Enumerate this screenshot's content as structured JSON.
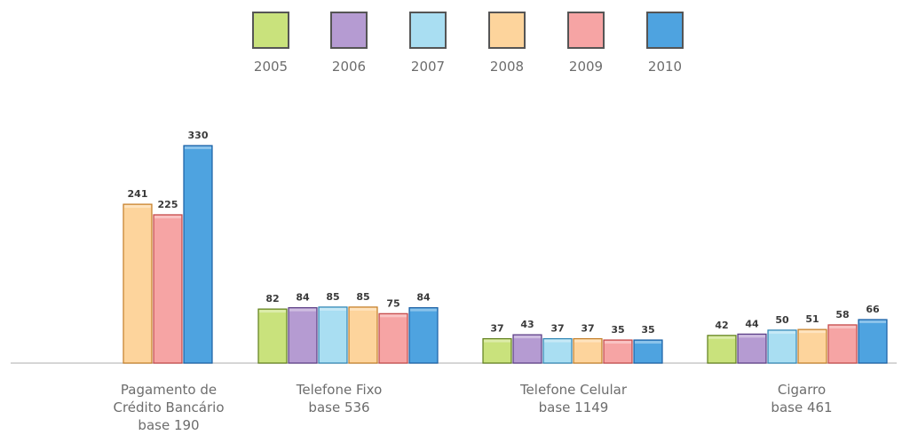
{
  "chart_data": {
    "type": "bar",
    "series": [
      {
        "name": "2005",
        "color": "#c9e27c",
        "edge": "#5f7e1c",
        "values": [
          null,
          82,
          37,
          42
        ]
      },
      {
        "name": "2006",
        "color": "#b59bd2",
        "edge": "#5b3d84",
        "values": [
          null,
          84,
          43,
          44
        ]
      },
      {
        "name": "2007",
        "color": "#a9def2",
        "edge": "#2e84b3",
        "values": [
          null,
          85,
          37,
          50
        ]
      },
      {
        "name": "2008",
        "color": "#fdd49c",
        "edge": "#c37d27",
        "values": [
          241,
          85,
          37,
          51
        ]
      },
      {
        "name": "2009",
        "color": "#f6a4a4",
        "edge": "#c34646",
        "values": [
          225,
          75,
          35,
          58
        ]
      },
      {
        "name": "2010",
        "color": "#4ea3e0",
        "edge": "#1a5fa3",
        "values": [
          330,
          84,
          35,
          66
        ]
      }
    ],
    "categories": [
      {
        "lines": [
          "Pagamento de",
          "Crédito Bancário",
          "base 190"
        ]
      },
      {
        "lines": [
          "Telefone Fixo",
          "base 536"
        ]
      },
      {
        "lines": [
          "Telefone Celular",
          "base 1149"
        ]
      },
      {
        "lines": [
          "Cigarro",
          "base 461"
        ]
      }
    ],
    "ylim": [
      0,
      340
    ],
    "legend_position": "top-center",
    "grid": false
  }
}
